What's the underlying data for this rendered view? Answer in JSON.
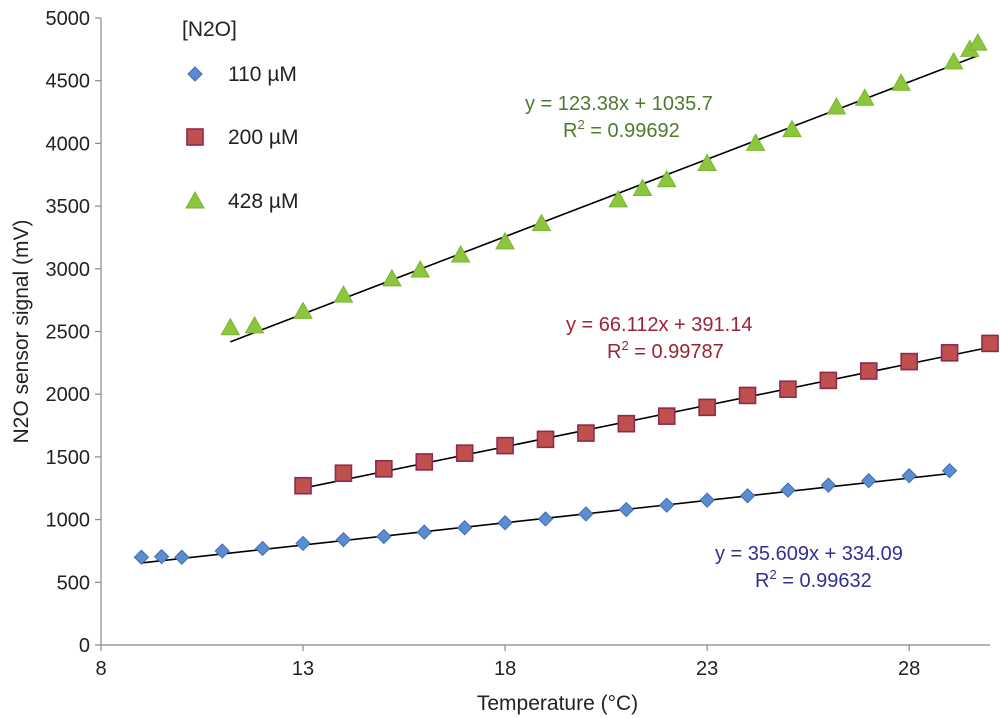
{
  "chart_data": {
    "type": "scatter",
    "title": "",
    "xlabel": "Temperature (°C)",
    "ylabel": "N2O sensor signal (mV)",
    "xlim": [
      8,
      30
    ],
    "ylim": [
      0,
      5000
    ],
    "x_ticks": [
      8,
      13,
      18,
      23,
      28
    ],
    "y_ticks": [
      0,
      500,
      1000,
      1500,
      2000,
      2500,
      3000,
      3500,
      4000,
      4500,
      5000
    ],
    "legend": {
      "title": "[N2O]",
      "position": "top-left"
    },
    "series": [
      {
        "name": "110 µM",
        "marker": "diamond",
        "color": "#5B8BD0",
        "line_color": "#000000",
        "x": [
          9.0,
          9.5,
          10.0,
          11.0,
          12.0,
          13.0,
          14.0,
          15.0,
          16.0,
          17.0,
          18.0,
          19.0,
          20.0,
          21.0,
          22.0,
          23.0,
          24.0,
          25.0,
          26.0,
          27.0,
          28.0,
          29.0
        ],
        "y": [
          700,
          705,
          700,
          750,
          770,
          810,
          840,
          865,
          900,
          935,
          975,
          1005,
          1045,
          1080,
          1115,
          1155,
          1190,
          1235,
          1275,
          1310,
          1350,
          1390
        ],
        "trendline": {
          "slope": 35.609,
          "intercept": 334.09,
          "x_range": [
            9.0,
            29.0
          ]
        },
        "equation": "y = 35.609x + 334.09",
        "r2_label": "R",
        "r2_sup": "2",
        "r2_value": " = 0.99632",
        "eq_color": "#2E3192"
      },
      {
        "name": "200 µM",
        "marker": "square",
        "color": "#C0504D",
        "line_color": "#000000",
        "x": [
          13.0,
          14.0,
          15.0,
          16.0,
          17.0,
          18.0,
          19.0,
          20.0,
          21.0,
          22.0,
          23.0,
          24.0,
          25.0,
          26.0,
          27.0,
          28.0,
          29.0,
          30.0
        ],
        "y": [
          1270,
          1370,
          1405,
          1460,
          1530,
          1590,
          1640,
          1690,
          1765,
          1825,
          1895,
          1990,
          2040,
          2110,
          2185,
          2260,
          2330,
          2405
        ],
        "trendline": {
          "slope": 66.112,
          "intercept": 391.14,
          "x_range": [
            13.0,
            30.0
          ]
        },
        "equation": "y = 66.112x + 391.14",
        "r2_label": "R",
        "r2_sup": "2",
        "r2_value": " = 0.99787",
        "eq_color": "#9B2335"
      },
      {
        "name": "428 µM",
        "marker": "triangle",
        "color": "#8CC63F",
        "line_color": "#000000",
        "x": [
          11.2,
          11.8,
          13.0,
          14.0,
          15.2,
          15.9,
          16.9,
          18.0,
          18.9,
          20.8,
          21.4,
          22.0,
          23.0,
          24.2,
          25.1,
          26.2,
          26.9,
          27.8,
          29.1,
          29.5,
          29.7
        ],
        "y": [
          2530,
          2545,
          2660,
          2790,
          2920,
          2990,
          3110,
          3215,
          3360,
          3550,
          3640,
          3710,
          3840,
          4000,
          4110,
          4290,
          4360,
          4480,
          4650,
          4750,
          4800
        ],
        "trendline": {
          "slope": 123.38,
          "intercept": 1035.7,
          "x_range": [
            11.2,
            29.7
          ]
        },
        "equation": "y = 123.38x + 1035.7",
        "r2_label": "R",
        "r2_sup": "2",
        "r2_value": " = 0.99692",
        "eq_color": "#4E7A2F"
      }
    ]
  }
}
